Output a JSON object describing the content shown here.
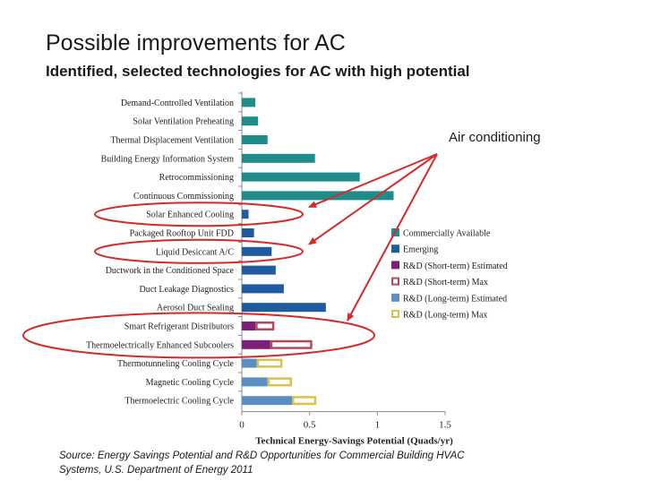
{
  "header": {
    "title": "Possible improvements for AC",
    "subtitle": "Identified, selected technologies for AC with high potential"
  },
  "annotation": "Air conditioning",
  "source": {
    "line1": "Source: Energy Savings Potential and R&D Opportunities for Commercial Building HVAC",
    "line2": "Systems, U.S. Department of Energy  2011"
  },
  "colors": {
    "commercially_available": "#1f8c8c",
    "emerging": "#1f5b9e",
    "rd_short_estimated": "#7a1f7a",
    "rd_short_max": "#b34a5a",
    "rd_long_estimated": "#5b8fc2",
    "rd_long_max": "#d9c24a",
    "highlight": "#d42a2a"
  },
  "chart_data": {
    "type": "bar",
    "orientation": "horizontal",
    "stacked": true,
    "xlabel": "Technical Energy-Savings Potential (Quads/yr)",
    "ylabel": "",
    "xlim": [
      0,
      1.5
    ],
    "xticks": [
      "0",
      "0.5",
      "1",
      "1.5"
    ],
    "categories": [
      "Demand-Controlled Ventilation",
      "Solar Ventilation Preheating",
      "Thermal Displacement Ventilation",
      "Building Energy Information System",
      "Retrocommissioning",
      "Continuous Commissioning",
      "Solar Enhanced Cooling",
      "Packaged Rooftop Unit FDD",
      "Liquid Desiccant A/C",
      "Ductwork in the Conditioned Space",
      "Duct Leakage Diagnostics",
      "Aerosol Duct Sealing",
      "Smart Refrigerant Distributors",
      "Thermoelectrically Enhanced Subcoolers",
      "Thermotunneling Cooling Cycle",
      "Magnetic Cooling Cycle",
      "Thermoelectric Cooling Cycle"
    ],
    "series": [
      {
        "name": "Commercially Available",
        "style": "solid",
        "color_key": "commercially_available",
        "values": [
          0.1,
          0.12,
          0.19,
          0.54,
          0.87,
          1.12,
          0,
          0,
          0,
          0,
          0,
          0,
          0,
          0,
          0,
          0,
          0
        ]
      },
      {
        "name": "Emerging",
        "style": "solid",
        "color_key": "emerging",
        "values": [
          0,
          0,
          0,
          0,
          0,
          0,
          0.05,
          0.09,
          0.22,
          0.25,
          0.31,
          0.62,
          0,
          0,
          0,
          0,
          0
        ]
      },
      {
        "name": "R&D (Short-term) Estimated",
        "style": "solid",
        "color_key": "rd_short_estimated",
        "values": [
          0,
          0,
          0,
          0,
          0,
          0,
          0,
          0,
          0,
          0,
          0,
          0,
          0.1,
          0.21,
          0,
          0,
          0
        ]
      },
      {
        "name": "R&D (Short-term) Max",
        "style": "outline",
        "color_key": "rd_short_max",
        "values": [
          0,
          0,
          0,
          0,
          0,
          0,
          0,
          0,
          0,
          0,
          0,
          0,
          0.14,
          0.31,
          0,
          0,
          0
        ]
      },
      {
        "name": "R&D (Long-term) Estimated",
        "style": "solid",
        "color_key": "rd_long_estimated",
        "values": [
          0,
          0,
          0,
          0,
          0,
          0,
          0,
          0,
          0,
          0,
          0,
          0,
          0,
          0,
          0.11,
          0.19,
          0.37
        ]
      },
      {
        "name": "R&D (Long-term) Max",
        "style": "outline",
        "color_key": "rd_long_max",
        "values": [
          0,
          0,
          0,
          0,
          0,
          0,
          0,
          0,
          0,
          0,
          0,
          0,
          0,
          0,
          0.19,
          0.18,
          0.18
        ]
      }
    ],
    "highlighted_categories": [
      "Solar Enhanced Cooling",
      "Liquid Desiccant A/C",
      "Smart Refrigerant Distributors",
      "Thermoelectrically Enhanced Subcoolers"
    ],
    "legend_position": "right"
  }
}
